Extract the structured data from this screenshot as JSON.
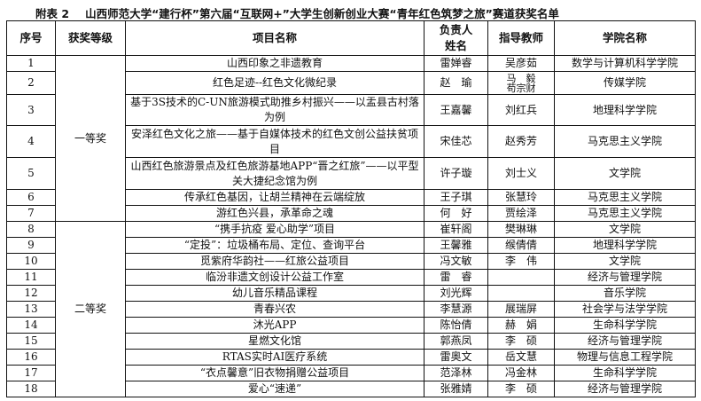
{
  "title": {
    "label": "附表 2",
    "text": "山西师范大学“建行杯”第六届“互联网+”大学生创新创业大赛“青年红色筑梦之旅”赛道获奖名单"
  },
  "headers": {
    "no": "序号",
    "level": "获奖等级",
    "project": "项目名称",
    "leader": "负责人姓名",
    "teacher": "指导教师",
    "college": "学院名称"
  },
  "groups": [
    {
      "level": "一等奖"
    },
    {
      "level": "二等奖"
    }
  ],
  "rows": [
    {
      "no": "1",
      "project": "山西印象之非遗教育",
      "leader": "雷婵睿",
      "teacher": "吴彦茹",
      "college": "数学与计算机科学学院"
    },
    {
      "no": "2",
      "project": "红色足迹--红色文化微纪录",
      "leader": "赵　瑜",
      "teacher": "马　毅",
      "teacher2": "苟宗财",
      "college": "传媒学院"
    },
    {
      "no": "3",
      "project": "基于3S技术的C-UN旅游模式助推乡村振兴——以盂县古村落为例",
      "leader": "王嘉馨",
      "teacher": "刘红兵",
      "college": "地理科学学院"
    },
    {
      "no": "4",
      "project": "安泽红色文化之旅——基于自媒体技术的红色文创公益扶贫项目",
      "leader": "宋佳芯",
      "teacher": "赵秀芳",
      "college": "马克思主义学院"
    },
    {
      "no": "5",
      "project": "山西红色旅游景点及红色旅游基地APP“晋之红旅”——以平型关大捷纪念馆为例",
      "leader": "许子璇",
      "teacher": "刘士义",
      "college": "文学院"
    },
    {
      "no": "6",
      "project": "传承红色基因，让胡兰精神在云端绽放",
      "leader": "王子琪",
      "teacher": "张慧玲",
      "college": "马克思主义学院"
    },
    {
      "no": "7",
      "project": "游红色兴县，承革命之魂",
      "leader": "何　好",
      "teacher": "贾绘泽",
      "college": "马克思主义学院"
    },
    {
      "no": "8",
      "project": "“携手抗疫 爱心助学”项目",
      "leader": "崔轩阁",
      "teacher": "樊琳琳",
      "college": "文学院"
    },
    {
      "no": "9",
      "project": "“定投”：垃圾桶布局、定位、查询平台",
      "leader": "王馨雅",
      "teacher": "缑倩倩",
      "college": "地理科学学院"
    },
    {
      "no": "10",
      "project": "觅紫府华韵社——红旅公益项目",
      "leader": "冯文敏",
      "teacher": "李　伟",
      "college": "文学院"
    },
    {
      "no": "11",
      "project": "临汾非遗文创设计公益工作室",
      "leader": "雷　睿",
      "teacher": "",
      "college": "经济与管理学院"
    },
    {
      "no": "12",
      "project": "幼儿音乐精品课程",
      "leader": "刘光辉",
      "teacher": "",
      "college": "音乐学院"
    },
    {
      "no": "13",
      "project": "青春兴农",
      "leader": "李慧源",
      "teacher": "展瑞屏",
      "college": "社会学与法学学院"
    },
    {
      "no": "14",
      "project": "沐光APP",
      "leader": "陈怡倩",
      "teacher": "赫　娟",
      "college": "生命科学学院"
    },
    {
      "no": "15",
      "project": "星燃文化馆",
      "leader": "郭燕凤",
      "teacher": "李　硕",
      "college": "经济与管理学院"
    },
    {
      "no": "16",
      "project": "RTAS实时AI医疗系统",
      "leader": "雷奥文",
      "teacher": "岳文慧",
      "college": "物理与信息工程学院"
    },
    {
      "no": "17",
      "project": "“衣点馨意”旧衣物捐赠公益项目",
      "leader": "范泽林",
      "teacher": "冯金林",
      "college": "生命科学学院"
    },
    {
      "no": "18",
      "project": "爱心“速递”",
      "leader": "张雅婧",
      "teacher": "李　硕",
      "college": "经济与管理学院"
    }
  ]
}
